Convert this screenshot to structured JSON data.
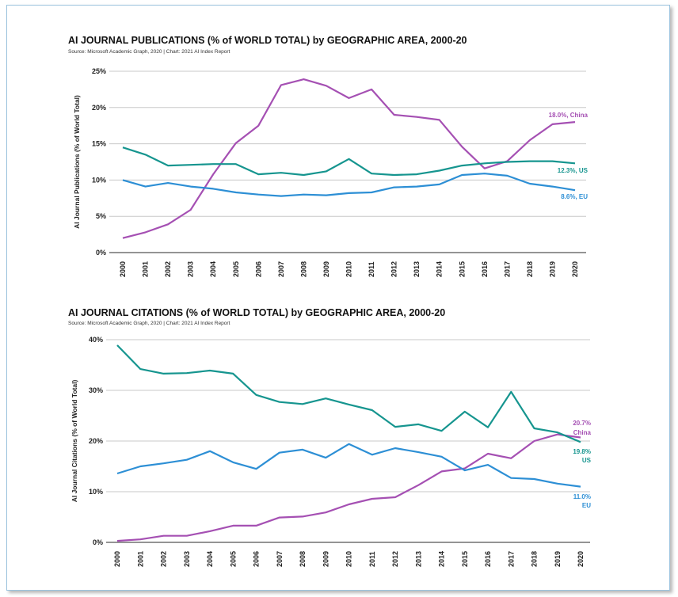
{
  "chart_data": [
    {
      "type": "line",
      "title": "AI JOURNAL PUBLICATIONS (% of WORLD TOTAL) by GEOGRAPHIC AREA, 2000-20",
      "subtitle": "Source: Microsoft Academic Graph, 2020 | Chart: 2021 AI Index Report",
      "xlabel": "",
      "ylabel": "AI Journal Publications (% of World Total)",
      "ylim": [
        0,
        25
      ],
      "yticks": [
        "0%",
        "5%",
        "10%",
        "15%",
        "20%",
        "25%"
      ],
      "x": [
        "2000",
        "2001",
        "2002",
        "2003",
        "2004",
        "2005",
        "2006",
        "2007",
        "2008",
        "2009",
        "2010",
        "2011",
        "2012",
        "2013",
        "2014",
        "2015",
        "2016",
        "2017",
        "2018",
        "2019",
        "2020"
      ],
      "grid": true,
      "series": [
        {
          "name": "China",
          "label": "18.0%, China",
          "color": "#a550b3",
          "values": [
            2.0,
            2.8,
            3.9,
            5.9,
            10.8,
            15.1,
            17.5,
            23.1,
            23.9,
            23.0,
            21.3,
            22.5,
            19.0,
            18.7,
            18.3,
            14.6,
            11.6,
            12.6,
            15.5,
            17.7,
            18.0
          ]
        },
        {
          "name": "US",
          "label": "12.3%, US",
          "color": "#16958f",
          "values": [
            14.5,
            13.5,
            12.0,
            12.1,
            12.2,
            12.2,
            10.8,
            11.0,
            10.7,
            11.2,
            12.9,
            10.9,
            10.7,
            10.8,
            11.3,
            12.0,
            12.3,
            12.5,
            12.6,
            12.6,
            12.3
          ]
        },
        {
          "name": "EU",
          "label": "8.6%, EU",
          "color": "#2d8fd5",
          "values": [
            10.0,
            9.1,
            9.6,
            9.1,
            8.8,
            8.3,
            8.0,
            7.8,
            8.0,
            7.9,
            8.2,
            8.3,
            9.0,
            9.1,
            9.4,
            10.7,
            10.9,
            10.6,
            9.5,
            9.1,
            8.6
          ]
        }
      ]
    },
    {
      "type": "line",
      "title": "AI JOURNAL CITATIONS (% of WORLD TOTAL) by GEOGRAPHIC AREA, 2000-20",
      "subtitle": "Source: Microsoft Academic Graph, 2020 | Chart: 2021 AI Index Report",
      "xlabel": "",
      "ylabel": "AI Journal Citations (% of World Total)",
      "ylim": [
        0,
        40
      ],
      "yticks": [
        "0%",
        "10%",
        "20%",
        "30%",
        "40%"
      ],
      "x": [
        "2000",
        "2001",
        "2002",
        "2003",
        "2004",
        "2005",
        "2006",
        "2007",
        "2008",
        "2009",
        "2010",
        "2011",
        "2012",
        "2013",
        "2014",
        "2015",
        "2016",
        "2017",
        "2018",
        "2019",
        "2020"
      ],
      "grid": true,
      "series": [
        {
          "name": "China",
          "label": [
            "20.7%",
            "China"
          ],
          "color": "#a550b3",
          "values": [
            0.3,
            0.6,
            1.3,
            1.3,
            2.2,
            3.3,
            3.3,
            4.9,
            5.1,
            5.9,
            7.5,
            8.6,
            8.9,
            11.3,
            14.0,
            14.6,
            17.5,
            16.6,
            20.0,
            21.3,
            20.7
          ]
        },
        {
          "name": "US",
          "label": [
            "19.8%",
            "US"
          ],
          "color": "#16958f",
          "values": [
            38.9,
            34.2,
            33.3,
            33.4,
            33.9,
            33.3,
            29.1,
            27.7,
            27.3,
            28.4,
            27.2,
            26.1,
            22.8,
            23.3,
            22.0,
            25.8,
            22.7,
            29.7,
            22.5,
            21.7,
            19.8
          ]
        },
        {
          "name": "EU",
          "label": [
            "11.0%",
            "EU"
          ],
          "color": "#2d8fd5",
          "values": [
            13.6,
            15.0,
            15.6,
            16.3,
            18.0,
            15.8,
            14.5,
            17.7,
            18.3,
            16.7,
            19.4,
            17.3,
            18.6,
            17.8,
            16.9,
            14.2,
            15.3,
            12.7,
            12.5,
            11.6,
            11.0
          ]
        }
      ]
    }
  ]
}
